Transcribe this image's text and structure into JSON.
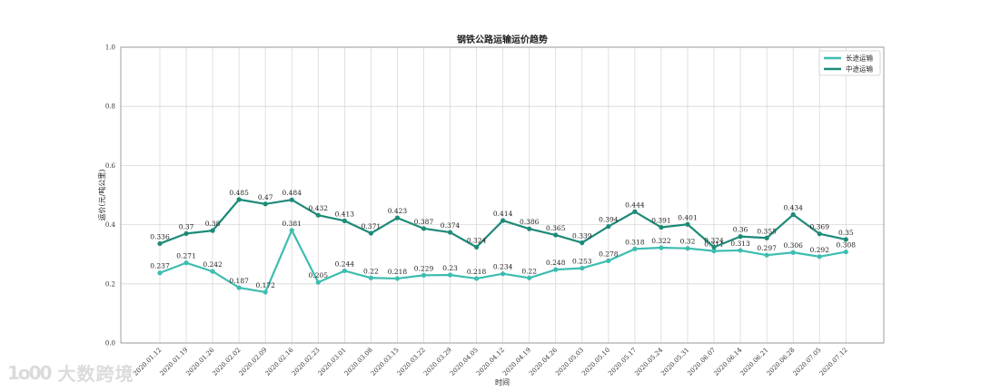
{
  "chart_data": {
    "type": "line",
    "title": "钢铁公路运输运价趋势",
    "xlabel": "时间",
    "ylabel": "运价(元/吨公里)",
    "ylim": [
      0.0,
      1.0
    ],
    "yticks": [
      "0.0",
      "0.2",
      "0.4",
      "0.6",
      "0.8",
      "1.0"
    ],
    "grid": true,
    "legend_position": "top-right",
    "categories": [
      "2020.01.12",
      "2020.01.19",
      "2020.01.26",
      "2020.02.02",
      "2020.02.09",
      "2020.02.16",
      "2020.02.23",
      "2020.03.01",
      "2020.03.08",
      "2020.03.15",
      "2020.03.22",
      "2020.03.29",
      "2020.04.05",
      "2020.04.12",
      "2020.04.19",
      "2020.04.26",
      "2020.05.03",
      "2020.05.10",
      "2020.05.17",
      "2020.05.24",
      "2020.05.31",
      "2020.06.07",
      "2020.06.14",
      "2020.06.21",
      "2020.06.28",
      "2020.07.05",
      "2020.07.12"
    ],
    "series": [
      {
        "name": "长途运输",
        "color": "#3dbdb0",
        "values": [
          0.237,
          0.271,
          0.242,
          0.187,
          0.172,
          0.381,
          0.205,
          0.244,
          0.22,
          0.218,
          0.229,
          0.23,
          0.218,
          0.234,
          0.22,
          0.248,
          0.253,
          0.278,
          0.318,
          0.322,
          0.32,
          0.311,
          0.313,
          0.297,
          0.306,
          0.292,
          0.308
        ]
      },
      {
        "name": "中途运输",
        "color": "#1d8a78",
        "values": [
          0.336,
          0.37,
          0.38,
          0.485,
          0.47,
          0.484,
          0.432,
          0.413,
          0.371,
          0.423,
          0.387,
          0.374,
          0.324,
          0.414,
          0.386,
          0.365,
          0.339,
          0.394,
          0.444,
          0.391,
          0.401,
          0.324,
          0.36,
          0.355,
          0.434,
          0.369,
          0.35
        ]
      }
    ]
  },
  "watermark": {
    "logo": "1o00",
    "text": "大数跨境"
  }
}
